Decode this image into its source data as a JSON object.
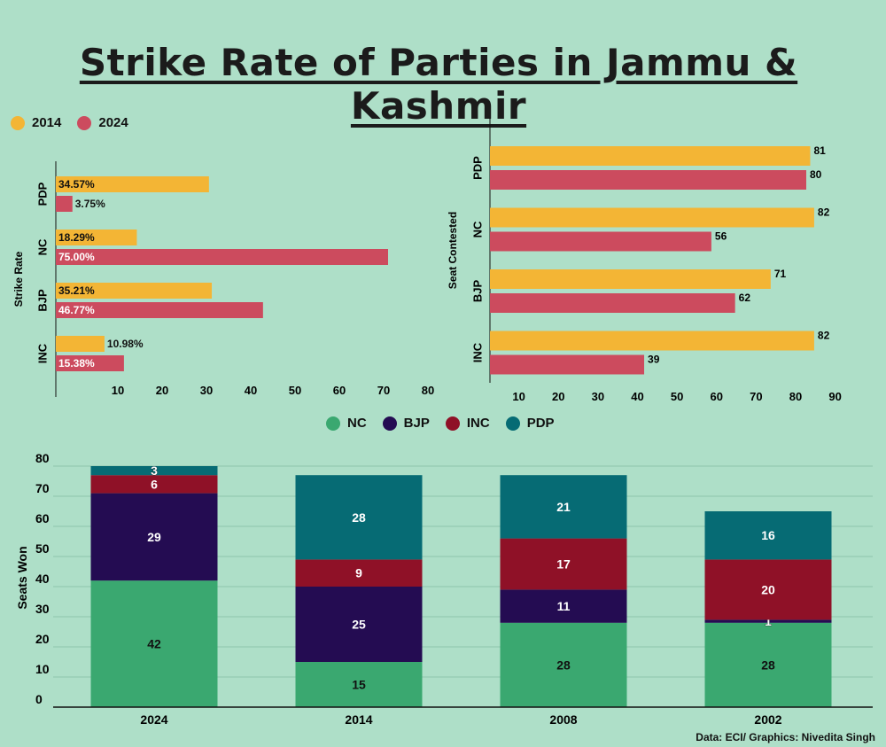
{
  "title": "Strike Rate of Parties in Jammu & Kashmir",
  "credit": "Data: ECI/ Graphics: Nivedita Singh",
  "colors": {
    "y2014": "#f3b535",
    "y2024": "#cc4b5e",
    "NC": "#3aa870",
    "BJP": "#240c52",
    "INC": "#8f1127",
    "PDP": "#066b74",
    "background": "#aedfc8"
  },
  "legend_top": [
    {
      "label": "2014",
      "color": "#f3b535"
    },
    {
      "label": "2024",
      "color": "#cc4b5e"
    }
  ],
  "legend_parties": [
    {
      "label": "NC",
      "color": "#3aa870"
    },
    {
      "label": "BJP",
      "color": "#240c52"
    },
    {
      "label": "INC",
      "color": "#8f1127"
    },
    {
      "label": "PDP",
      "color": "#066b74"
    }
  ],
  "chart_data": [
    {
      "type": "bar",
      "orientation": "horizontal",
      "title": "",
      "ylabel": "Strike Rate",
      "categories": [
        "PDP",
        "NC",
        "BJP",
        "INC"
      ],
      "series": [
        {
          "name": "2014",
          "values": [
            34.57,
            18.29,
            35.21,
            10.98
          ],
          "labels": [
            "34.57%",
            "18.29%",
            "35.21%",
            "10.98%"
          ]
        },
        {
          "name": "2024",
          "values": [
            3.75,
            75.0,
            46.77,
            15.38
          ],
          "labels": [
            "3.75%",
            "75.00%",
            "46.77%",
            "15.38%"
          ]
        }
      ],
      "xticks": [
        10,
        20,
        30,
        40,
        50,
        60,
        70,
        80
      ],
      "xlim": [
        0,
        83
      ]
    },
    {
      "type": "bar",
      "orientation": "horizontal",
      "title": "",
      "ylabel": "Seat Contested",
      "categories": [
        "PDP",
        "NC",
        "BJP",
        "INC"
      ],
      "series": [
        {
          "name": "2014",
          "values": [
            81,
            82,
            71,
            82
          ]
        },
        {
          "name": "2024",
          "values": [
            80,
            56,
            62,
            39
          ]
        }
      ],
      "xticks": [
        10,
        20,
        30,
        40,
        50,
        60,
        70,
        80,
        90
      ],
      "xlim": [
        0,
        93
      ]
    },
    {
      "type": "bar",
      "stacked": true,
      "title": "",
      "ylabel": "Seats Won",
      "categories": [
        "2024",
        "2014",
        "2008",
        "2002"
      ],
      "series": [
        {
          "name": "NC",
          "values": [
            42,
            15,
            28,
            28
          ]
        },
        {
          "name": "BJP",
          "values": [
            29,
            25,
            11,
            1
          ]
        },
        {
          "name": "INC",
          "values": [
            6,
            9,
            17,
            20
          ]
        },
        {
          "name": "PDP",
          "values": [
            3,
            28,
            21,
            16
          ]
        }
      ],
      "yticks": [
        0,
        10,
        20,
        30,
        40,
        50,
        60,
        70,
        80
      ],
      "ylim": [
        0,
        83
      ]
    }
  ]
}
